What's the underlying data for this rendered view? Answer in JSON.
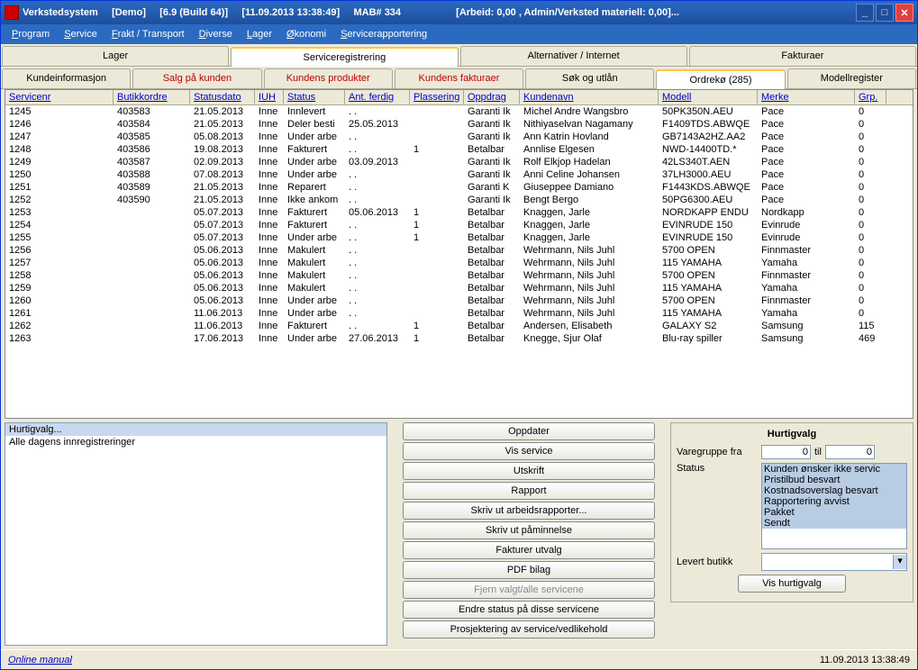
{
  "titlebar": {
    "app": "Verkstedsystem",
    "demo": "[Demo]",
    "version": "[6.9 (Build 64)]",
    "date": "[11.09.2013   13:38:49]",
    "mab": "MAB# 334",
    "right": "[Arbeid: 0,00 , Admin/Verksted materiell: 0,00]..."
  },
  "menubar": [
    "Program",
    "Service",
    "Frakt / Transport",
    "Diverse",
    "Lager",
    "Økonomi",
    "Servicerapportering"
  ],
  "tabs1": [
    {
      "label": "Lager",
      "active": false
    },
    {
      "label": "Serviceregistrering",
      "active": true
    },
    {
      "label": "Alternativer / Internet",
      "active": false
    },
    {
      "label": "Fakturaer",
      "active": false
    }
  ],
  "tabs2": [
    {
      "label": "Kundeinformasjon",
      "red": false,
      "active": false
    },
    {
      "label": "Salg på kunden",
      "red": true,
      "active": false
    },
    {
      "label": "Kundens produkter",
      "red": true,
      "active": false
    },
    {
      "label": "Kundens fakturaer",
      "red": true,
      "active": false
    },
    {
      "label": "Søk og utlån",
      "red": false,
      "active": false
    },
    {
      "label": "Ordrekø (285)",
      "red": false,
      "active": true
    },
    {
      "label": "Modellregister",
      "red": false,
      "active": false
    }
  ],
  "columns": [
    "Servicenr",
    "Butikkordre",
    "Statusdato",
    "IUH",
    "Status",
    "Ant. ferdig",
    "Plassering",
    "Oppdrag",
    "Kundenavn",
    "Modell",
    "Merke",
    "Grp."
  ],
  "rows": [
    [
      "1245",
      "403583",
      "21.05.2013",
      "Inne",
      "Innlevert",
      ". .",
      "",
      "Garanti   Ik",
      "Michel Andre Wangsbro",
      "50PK350N.AEU",
      "Pace",
      "0"
    ],
    [
      "1246",
      "403584",
      "21.05.2013",
      "Inne",
      "Deler besti",
      "25.05.2013",
      "",
      "Garanti   Ik",
      "Nithiyaselvan Nagamany",
      "F1409TDS.ABWQE",
      "Pace",
      "0"
    ],
    [
      "1247",
      "403585",
      "05.08.2013",
      "Inne",
      "Under arbe",
      ". .",
      "",
      "Garanti   Ik",
      "Ann Katrin Hovland",
      "GB7143A2HZ.AA2",
      "Pace",
      "0"
    ],
    [
      "1248",
      "403586",
      "19.08.2013",
      "Inne",
      "Fakturert",
      ". .",
      "1",
      "Betalbar",
      "Annlise Elgesen",
      "NWD-14400TD.*",
      "Pace",
      "0"
    ],
    [
      "1249",
      "403587",
      "02.09.2013",
      "Inne",
      "Under arbe",
      "03.09.2013",
      "",
      "Garanti   Ik",
      "Rolf Elkjop Hadelan",
      "42LS340T.AEN",
      "Pace",
      "0"
    ],
    [
      "1250",
      "403588",
      "07.08.2013",
      "Inne",
      "Under arbe",
      ". .",
      "",
      "Garanti   Ik",
      "Anni Celine Johansen",
      "37LH3000.AEU",
      "Pace",
      "0"
    ],
    [
      "1251",
      "403589",
      "21.05.2013",
      "Inne",
      "Reparert",
      ". .",
      "",
      "Garanti   K",
      "Giuseppee Damiano",
      "F1443KDS.ABWQE",
      "Pace",
      "0"
    ],
    [
      "1252",
      "403590",
      "21.05.2013",
      "Inne",
      "Ikke ankom",
      ". .",
      "",
      "Garanti   Ik",
      "Bengt Bergo",
      "50PG6300.AEU",
      "Pace",
      "0"
    ],
    [
      "1253",
      "",
      "05.07.2013",
      "Inne",
      "Fakturert",
      "05.06.2013",
      "1",
      "Betalbar",
      "Knaggen, Jarle",
      "NORDKAPP ENDU",
      "Nordkapp",
      "0"
    ],
    [
      "1254",
      "",
      "05.07.2013",
      "Inne",
      "Fakturert",
      ". .",
      "1",
      "Betalbar",
      "Knaggen, Jarle",
      "EVINRUDE 150",
      "Evinrude",
      "0"
    ],
    [
      "1255",
      "",
      "05.07.2013",
      "Inne",
      "Under arbe",
      ". .",
      "1",
      "Betalbar",
      "Knaggen, Jarle",
      "EVINRUDE 150",
      "Evinrude",
      "0"
    ],
    [
      "1256",
      "",
      "05.06.2013",
      "Inne",
      "Makulert",
      ". .",
      "",
      "Betalbar",
      "Wehrmann, Nils Juhl",
      "5700 OPEN",
      "Finnmaster",
      "0"
    ],
    [
      "1257",
      "",
      "05.06.2013",
      "Inne",
      "Makulert",
      ". .",
      "",
      "Betalbar",
      "Wehrmann, Nils Juhl",
      "115 YAMAHA",
      "Yamaha",
      "0"
    ],
    [
      "1258",
      "",
      "05.06.2013",
      "Inne",
      "Makulert",
      ". .",
      "",
      "Betalbar",
      "Wehrmann, Nils Juhl",
      "5700 OPEN",
      "Finnmaster",
      "0"
    ],
    [
      "1259",
      "",
      "05.06.2013",
      "Inne",
      "Makulert",
      ". .",
      "",
      "Betalbar",
      "Wehrmann, Nils Juhl",
      "115 YAMAHA",
      "Yamaha",
      "0"
    ],
    [
      "1260",
      "",
      "05.06.2013",
      "Inne",
      "Under arbe",
      ". .",
      "",
      "Betalbar",
      "Wehrmann, Nils Juhl",
      "5700 OPEN",
      "Finnmaster",
      "0"
    ],
    [
      "1261",
      "",
      "11.06.2013",
      "Inne",
      "Under arbe",
      ". .",
      "",
      "Betalbar",
      "Wehrmann, Nils Juhl",
      "115 YAMAHA",
      "Yamaha",
      "0"
    ],
    [
      "1262",
      "",
      "11.06.2013",
      "Inne",
      "Fakturert",
      ". .",
      "1",
      "Betalbar",
      "Andersen, Elisabeth",
      "GALAXY S2",
      "Samsung",
      "115"
    ],
    [
      "1263",
      "",
      "17.06.2013",
      "Inne",
      "Under arbe",
      "27.06.2013",
      "1",
      "Betalbar",
      "Knegge, Sjur Olaf",
      "Blu-ray spiller",
      "Samsung",
      "469"
    ]
  ],
  "listbox": {
    "items": [
      {
        "text": "Hurtigvalg...",
        "sel": true
      },
      {
        "text": "Alle dagens innregistreringer",
        "sel": false
      }
    ]
  },
  "buttons": [
    {
      "label": "Oppdater"
    },
    {
      "label": "Vis service"
    },
    {
      "label": "Utskrift"
    },
    {
      "label": "Rapport"
    },
    {
      "label": "Skriv ut arbeidsrapporter..."
    },
    {
      "label": "Skriv ut påminnelse"
    },
    {
      "label": "Fakturer utvalg"
    },
    {
      "label": "PDF bilag"
    },
    {
      "label": "Fjern valgt/alle servicene",
      "disabled": true
    },
    {
      "label": "Endre status på disse servicene"
    },
    {
      "label": "Prosjektering av service/vedlikehold"
    }
  ],
  "panel": {
    "title": "Hurtigvalg",
    "varegruppe_label": "Varegruppe fra",
    "fra": "0",
    "til_label": "til",
    "til": "0",
    "status_label": "Status",
    "status_opts": [
      "Kunden ønsker ikke servic",
      "Pristilbud besvart",
      "Kostnadsoverslag besvart",
      "Rapportering avvist",
      "Pakket",
      "Sendt"
    ],
    "levert_label": "Levert butikk",
    "vis_btn": "Vis hurtigvalg"
  },
  "statusbar": {
    "link": "Online manual",
    "right": "11.09.2013   13:38:49"
  }
}
